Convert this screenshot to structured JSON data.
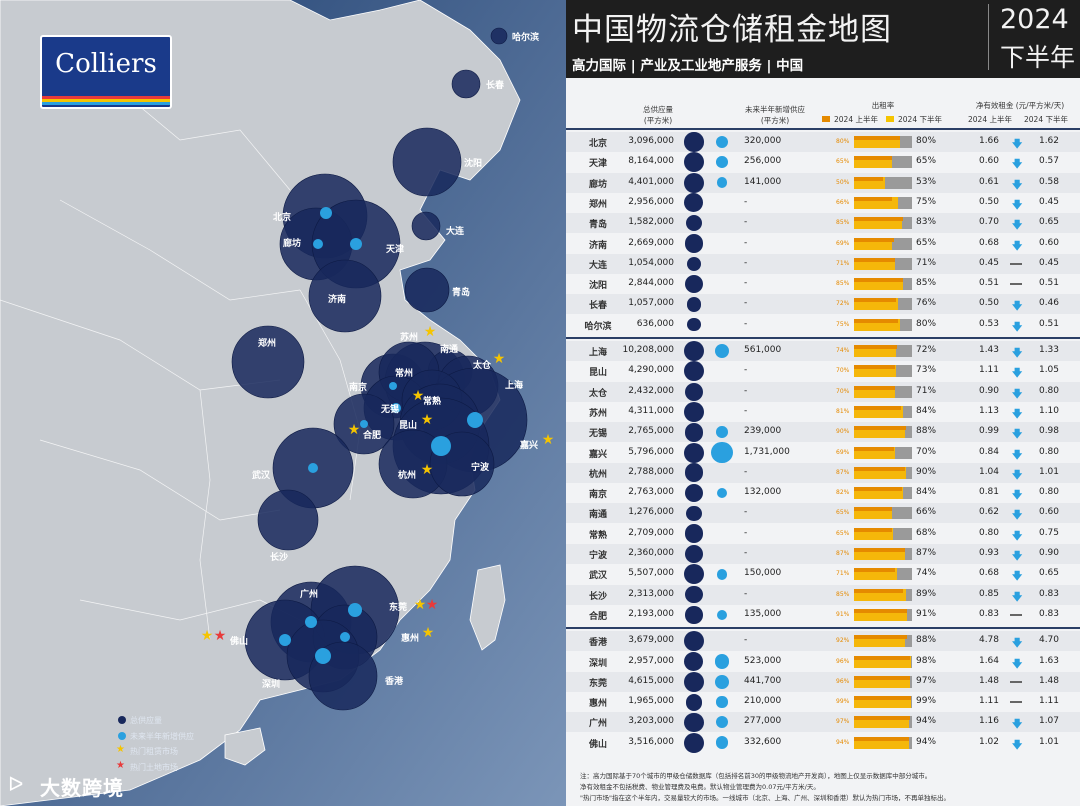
{
  "header": {
    "title": "中国物流仓储租金地图",
    "subtitle": "高力国际 | 产业及工业地产服务 | 中国",
    "year": "2024",
    "period": "下半年"
  },
  "logo": {
    "text": "Colliers"
  },
  "columns": {
    "supply": "总供应量\n(平方米)",
    "new_supply": "未来半年新增供应\n(平方米)",
    "occupancy": "出租率",
    "rent": "净有效租金 (元/平方米/天)",
    "h1": "2024 上半年",
    "h2": "2024 下半年"
  },
  "colors": {
    "navy": "#18285c",
    "light_blue": "#2aa0df",
    "bar_yellow": "#f5b70a",
    "bar_gray": "#9a9a9a"
  },
  "rows": [
    {
      "city": "北京",
      "supply": "3,096,000",
      "new": "320,000",
      "occ1": "80%",
      "occ2": "80%",
      "occ1v": 80,
      "occ2v": 80,
      "r1": "1.66",
      "trend": "down",
      "r2": "1.62"
    },
    {
      "city": "天津",
      "supply": "8,164,000",
      "new": "256,000",
      "occ1": "65%",
      "occ2": "65%",
      "occ1v": 65,
      "occ2v": 65,
      "r1": "0.60",
      "trend": "down",
      "r2": "0.57"
    },
    {
      "city": "廊坊",
      "supply": "4,401,000",
      "new": "141,000",
      "occ1": "50%",
      "occ2": "53%",
      "occ1v": 50,
      "occ2v": 53,
      "r1": "0.61",
      "trend": "down",
      "r2": "0.58"
    },
    {
      "city": "郑州",
      "supply": "2,956,000",
      "new": "-",
      "occ1": "66%",
      "occ2": "75%",
      "occ1v": 66,
      "occ2v": 75,
      "r1": "0.50",
      "trend": "down",
      "r2": "0.45"
    },
    {
      "city": "青岛",
      "supply": "1,582,000",
      "new": "-",
      "occ1": "85%",
      "occ2": "83%",
      "occ1v": 85,
      "occ2v": 83,
      "r1": "0.70",
      "trend": "down",
      "r2": "0.65"
    },
    {
      "city": "济南",
      "supply": "2,669,000",
      "new": "-",
      "occ1": "69%",
      "occ2": "65%",
      "occ1v": 69,
      "occ2v": 65,
      "r1": "0.68",
      "trend": "down",
      "r2": "0.60"
    },
    {
      "city": "大连",
      "supply": "1,054,000",
      "new": "-",
      "occ1": "71%",
      "occ2": "71%",
      "occ1v": 71,
      "occ2v": 71,
      "r1": "0.45",
      "trend": "flat",
      "r2": "0.45"
    },
    {
      "city": "沈阳",
      "supply": "2,844,000",
      "new": "-",
      "occ1": "85%",
      "occ2": "85%",
      "occ1v": 85,
      "occ2v": 85,
      "r1": "0.51",
      "trend": "flat",
      "r2": "0.51"
    },
    {
      "city": "长春",
      "supply": "1,057,000",
      "new": "-",
      "occ1": "72%",
      "occ2": "76%",
      "occ1v": 72,
      "occ2v": 76,
      "r1": "0.50",
      "trend": "down",
      "r2": "0.46"
    },
    {
      "city": "哈尔滨",
      "supply": "636,000",
      "new": "-",
      "occ1": "75%",
      "occ2": "80%",
      "occ1v": 75,
      "occ2v": 80,
      "r1": "0.53",
      "trend": "down",
      "r2": "0.51"
    },
    {
      "city": "上海",
      "supply": "10,208,000",
      "new": "561,000",
      "occ1": "74%",
      "occ2": "72%",
      "occ1v": 74,
      "occ2v": 72,
      "r1": "1.43",
      "trend": "down",
      "r2": "1.33"
    },
    {
      "city": "昆山",
      "supply": "4,290,000",
      "new": "-",
      "occ1": "70%",
      "occ2": "73%",
      "occ1v": 70,
      "occ2v": 73,
      "r1": "1.11",
      "trend": "down",
      "r2": "1.05"
    },
    {
      "city": "太仓",
      "supply": "2,432,000",
      "new": "-",
      "occ1": "70%",
      "occ2": "71%",
      "occ1v": 70,
      "occ2v": 71,
      "r1": "0.90",
      "trend": "down",
      "r2": "0.80"
    },
    {
      "city": "苏州",
      "supply": "4,311,000",
      "new": "-",
      "occ1": "81%",
      "occ2": "84%",
      "occ1v": 81,
      "occ2v": 84,
      "r1": "1.13",
      "trend": "down",
      "r2": "1.10"
    },
    {
      "city": "无锡",
      "supply": "2,765,000",
      "new": "239,000",
      "occ1": "90%",
      "occ2": "88%",
      "occ1v": 90,
      "occ2v": 88,
      "r1": "0.99",
      "trend": "down",
      "r2": "0.98"
    },
    {
      "city": "嘉兴",
      "supply": "5,796,000",
      "new": "1,731,000",
      "occ1": "69%",
      "occ2": "70%",
      "occ1v": 69,
      "occ2v": 70,
      "r1": "0.84",
      "trend": "down",
      "r2": "0.80"
    },
    {
      "city": "杭州",
      "supply": "2,788,000",
      "new": "-",
      "occ1": "87%",
      "occ2": "90%",
      "occ1v": 87,
      "occ2v": 90,
      "r1": "1.04",
      "trend": "down",
      "r2": "1.01"
    },
    {
      "city": "南京",
      "supply": "2,763,000",
      "new": "132,000",
      "occ1": "82%",
      "occ2": "84%",
      "occ1v": 82,
      "occ2v": 84,
      "r1": "0.81",
      "trend": "down",
      "r2": "0.80"
    },
    {
      "city": "南通",
      "supply": "1,276,000",
      "new": "-",
      "occ1": "65%",
      "occ2": "66%",
      "occ1v": 65,
      "occ2v": 66,
      "r1": "0.62",
      "trend": "down",
      "r2": "0.60"
    },
    {
      "city": "常熟",
      "supply": "2,709,000",
      "new": "-",
      "occ1": "65%",
      "occ2": "68%",
      "occ1v": 65,
      "occ2v": 68,
      "r1": "0.80",
      "trend": "down",
      "r2": "0.75"
    },
    {
      "city": "宁波",
      "supply": "2,360,000",
      "new": "-",
      "occ1": "87%",
      "occ2": "87%",
      "occ1v": 87,
      "occ2v": 87,
      "r1": "0.93",
      "trend": "down",
      "r2": "0.90"
    },
    {
      "city": "武汉",
      "supply": "5,507,000",
      "new": "150,000",
      "occ1": "71%",
      "occ2": "74%",
      "occ1v": 71,
      "occ2v": 74,
      "r1": "0.68",
      "trend": "down",
      "r2": "0.65"
    },
    {
      "city": "长沙",
      "supply": "2,313,000",
      "new": "-",
      "occ1": "85%",
      "occ2": "89%",
      "occ1v": 85,
      "occ2v": 89,
      "r1": "0.85",
      "trend": "down",
      "r2": "0.83"
    },
    {
      "city": "合肥",
      "supply": "2,193,000",
      "new": "135,000",
      "occ1": "91%",
      "occ2": "91%",
      "occ1v": 91,
      "occ2v": 91,
      "r1": "0.83",
      "trend": "flat",
      "r2": "0.83"
    },
    {
      "city": "香港",
      "supply": "3,679,000",
      "new": "-",
      "occ1": "92%",
      "occ2": "88%",
      "occ1v": 92,
      "occ2v": 88,
      "r1": "4.78",
      "trend": "down",
      "r2": "4.70"
    },
    {
      "city": "深圳",
      "supply": "2,957,000",
      "new": "523,000",
      "occ1": "96%",
      "occ2": "98%",
      "occ1v": 96,
      "occ2v": 98,
      "r1": "1.64",
      "trend": "down",
      "r2": "1.63"
    },
    {
      "city": "东莞",
      "supply": "4,615,000",
      "new": "441,700",
      "occ1": "96%",
      "occ2": "97%",
      "occ1v": 96,
      "occ2v": 97,
      "r1": "1.48",
      "trend": "flat",
      "r2": "1.48"
    },
    {
      "city": "惠州",
      "supply": "1,965,000",
      "new": "210,000",
      "occ1": "99%",
      "occ2": "99%",
      "occ1v": 99,
      "occ2v": 99,
      "r1": "1.11",
      "trend": "flat",
      "r2": "1.11"
    },
    {
      "city": "广州",
      "supply": "3,203,000",
      "new": "277,000",
      "occ1": "97%",
      "occ2": "94%",
      "occ1v": 97,
      "occ2v": 94,
      "r1": "1.16",
      "trend": "down",
      "r2": "1.07"
    },
    {
      "city": "佛山",
      "supply": "3,516,000",
      "new": "332,600",
      "occ1": "94%",
      "occ2": "94%",
      "occ1v": 94,
      "occ2v": 94,
      "r1": "1.02",
      "trend": "down",
      "r2": "1.01"
    }
  ],
  "map_labels": [
    "哈尔滨",
    "长春",
    "沈阳",
    "北京",
    "廊坊",
    "天津",
    "大连",
    "济南",
    "青岛",
    "郑州",
    "苏州",
    "南通",
    "太仓",
    "常州",
    "上海",
    "南京",
    "无锡",
    "常熟",
    "合肥",
    "昆山",
    "嘉兴",
    "杭州",
    "宁波",
    "武汉",
    "长沙",
    "广州",
    "东莞",
    "佛山",
    "惠州",
    "深圳",
    "香港"
  ],
  "legend": {
    "supply": "总供应量",
    "new": "未来半年新增供应",
    "hot_lease": "热门租赁市场",
    "hot_land": "热门土地市场"
  },
  "footer": {
    "line1": "注：高力国际基于70个城市的甲级仓储数据库（包括排名前30的甲级物流地产开发商），地图上仅显示数据库中部分城市。",
    "line2": "净有效租金不包括税费、物业管理费及电费。默认物业管理费为0.07元/平方米/天。",
    "line3": "\"热门市场\"指在这个半年内，交易量较大的市场。一线城市（北京、上海、广州、深圳和香港）默认为热门市场，不再单独标出。"
  },
  "watermark": "大数跨境"
}
